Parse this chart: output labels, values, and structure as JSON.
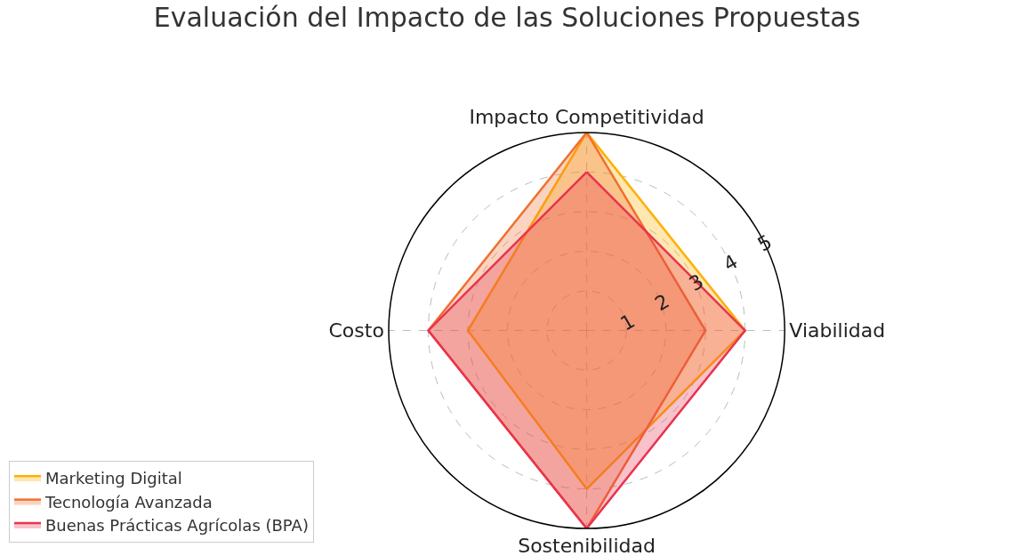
{
  "chart_data": {
    "type": "radar",
    "title": "Evaluación del Impacto de las Soluciones Propuestas",
    "categories": [
      "Impacto Competitividad",
      "Viabilidad",
      "Sostenibilidad",
      "Costo"
    ],
    "series": [
      {
        "name": "Marketing Digital",
        "color": "#ffb000",
        "values": [
          5,
          4,
          4,
          3
        ]
      },
      {
        "name": "Tecnología Avanzada",
        "color": "#f07030",
        "values": [
          5,
          3,
          5,
          4
        ]
      },
      {
        "name": "Buenas Prácticas Agrícolas (BPA)",
        "color": "#e8344f",
        "values": [
          4,
          4,
          5,
          4
        ]
      }
    ],
    "ylim": [
      0,
      5
    ],
    "yticks": [
      1,
      2,
      3,
      4,
      5
    ],
    "grid": true,
    "legend": "bottom left",
    "marker": "none"
  }
}
